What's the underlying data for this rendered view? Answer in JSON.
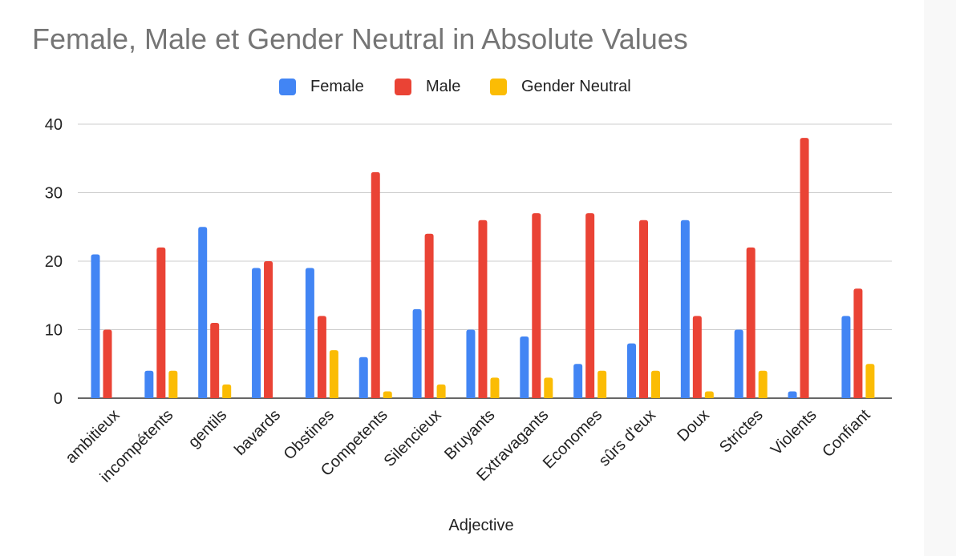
{
  "colors": {
    "female": "#4285f4",
    "male": "#ea4335",
    "gender_neutral": "#fbbc04",
    "grid": "#cccccc",
    "axis": "#333333",
    "title": "#757575",
    "text": "#222222"
  },
  "chart_data": {
    "type": "bar",
    "title": "Female, Male et Gender Neutral in Absolute Values",
    "xlabel": "Adjective",
    "ylabel": "",
    "ylim": [
      0,
      40
    ],
    "yticks": [
      0,
      10,
      20,
      30,
      40
    ],
    "grid": true,
    "legend_position": "top-center",
    "categories": [
      "ambitieux",
      "incompétents",
      "gentils",
      "bavards",
      "Obstines",
      "Competents",
      "Silencieux",
      "Bruyants",
      "Extravagants",
      "Economes",
      "sûrs d'eux",
      "Doux",
      "Strictes",
      "Violents",
      "Confiant"
    ],
    "series": [
      {
        "name": "Female",
        "color": "#4285f4",
        "values": [
          21,
          4,
          25,
          19,
          19,
          6,
          13,
          10,
          9,
          5,
          8,
          26,
          10,
          1,
          12
        ]
      },
      {
        "name": "Male",
        "color": "#ea4335",
        "values": [
          10,
          22,
          11,
          20,
          12,
          33,
          24,
          26,
          27,
          27,
          26,
          12,
          22,
          38,
          16
        ]
      },
      {
        "name": "Gender Neutral",
        "color": "#fbbc04",
        "values": [
          0,
          4,
          2,
          0,
          7,
          1,
          2,
          3,
          3,
          4,
          4,
          1,
          4,
          0,
          5
        ]
      }
    ]
  }
}
